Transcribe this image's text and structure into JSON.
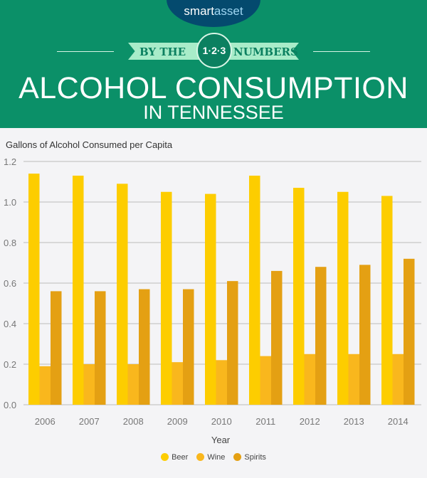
{
  "header": {
    "brand_left": "smart",
    "brand_right": "asset",
    "ribbon_left": "BY THE",
    "ribbon_circle": "1·2·3",
    "ribbon_right": "NUMBERS",
    "title": "ALCOHOL CONSUMPTION",
    "subtitle": "IN TENNESSEE"
  },
  "chart_data": {
    "type": "bar",
    "title": "ALCOHOL CONSUMPTION IN TENNESSEE",
    "ylabel": "Gallons of Alcohol Consumed per Capita",
    "xlabel": "Year",
    "ylim": [
      0,
      1.2
    ],
    "yticks": [
      "0.0",
      "0.2",
      "0.4",
      "0.6",
      "0.8",
      "1.0",
      "1.2"
    ],
    "grid": true,
    "legend": "bottom",
    "categories": [
      "2006",
      "2007",
      "2008",
      "2009",
      "2010",
      "2011",
      "2012",
      "2013",
      "2014"
    ],
    "series": [
      {
        "name": "Beer",
        "color": "#fdcd00",
        "values": [
          1.14,
          1.13,
          1.09,
          1.05,
          1.04,
          1.13,
          1.07,
          1.05,
          1.03
        ]
      },
      {
        "name": "Wine",
        "color": "#f9b71d",
        "values": [
          0.19,
          0.2,
          0.2,
          0.21,
          0.22,
          0.24,
          0.25,
          0.25,
          0.25
        ]
      },
      {
        "name": "Spirits",
        "color": "#e4a013",
        "values": [
          0.56,
          0.56,
          0.57,
          0.57,
          0.61,
          0.66,
          0.68,
          0.69,
          0.72
        ]
      }
    ]
  }
}
